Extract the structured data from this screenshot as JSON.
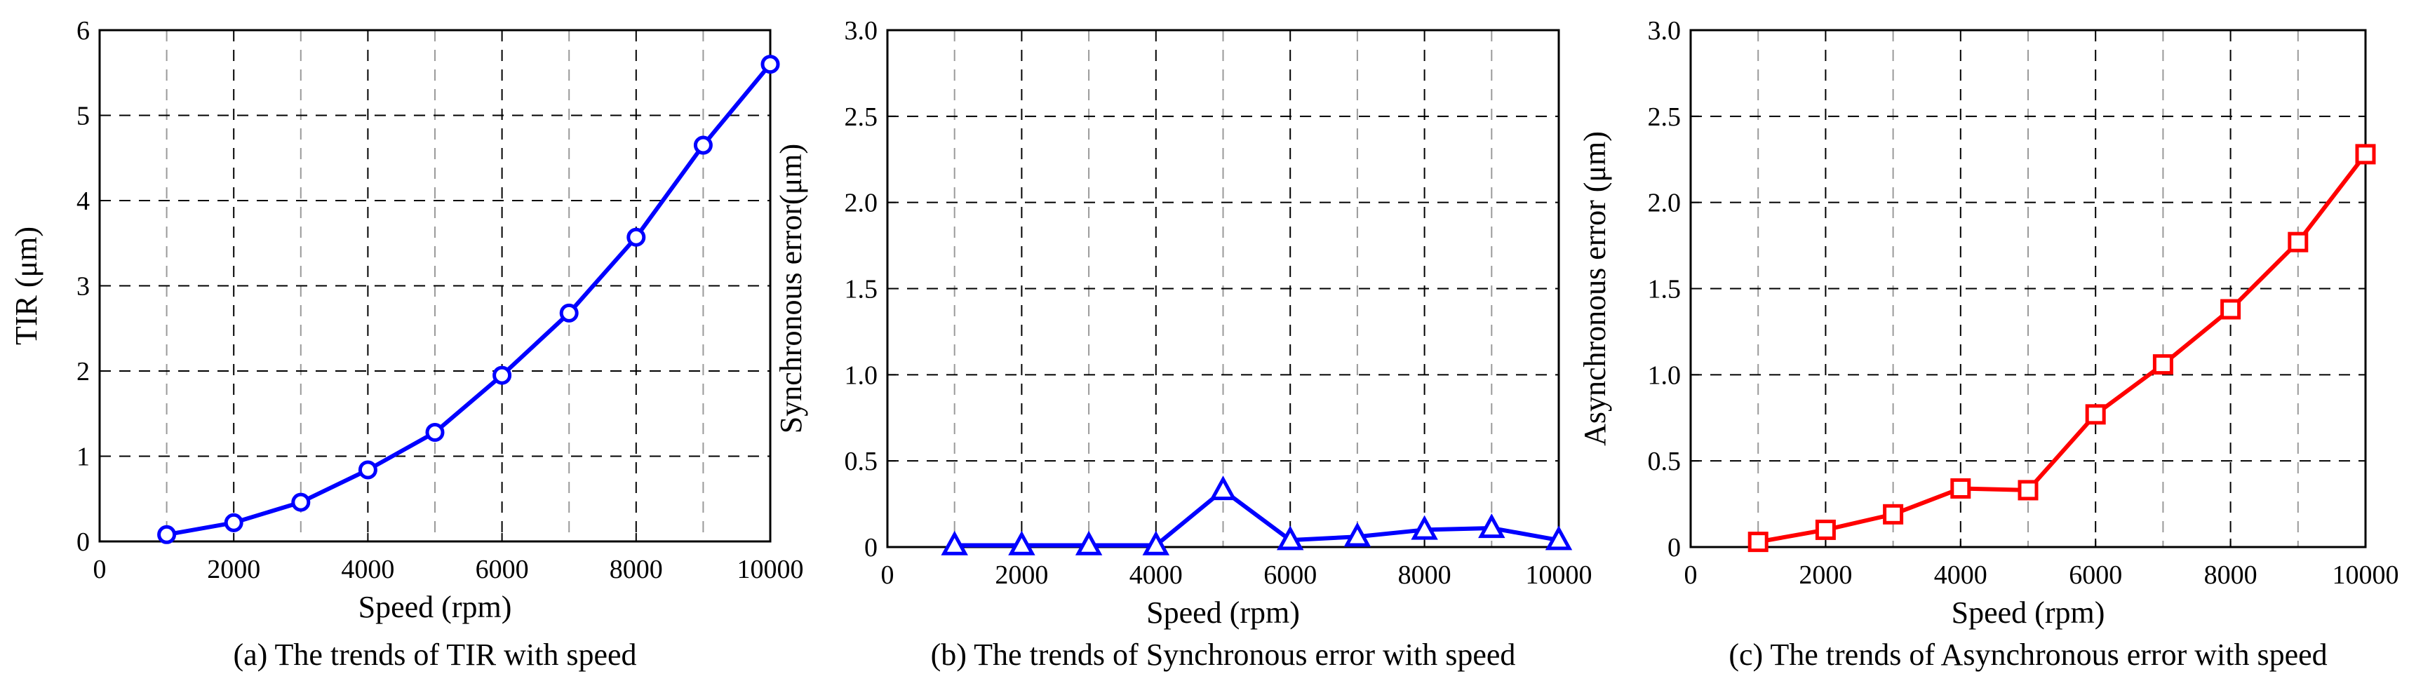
{
  "chart_data": [
    {
      "type": "line",
      "title": "",
      "caption": "(a) The  trends of TIR with speed",
      "xlabel": "Speed (rpm)",
      "ylabel": "TIR (μm)",
      "xlim": [
        0,
        10000
      ],
      "ylim": [
        0,
        6
      ],
      "xticks": [
        0,
        2000,
        4000,
        6000,
        8000,
        10000
      ],
      "xtick_labels": [
        "0",
        "2000",
        "4000",
        "6000",
        "8000",
        "10000"
      ],
      "yticks": [
        0,
        1,
        2,
        3,
        4,
        5,
        6
      ],
      "ytick_labels": [
        "0",
        "1",
        "2",
        "3",
        "4",
        "5",
        "6"
      ],
      "grid": true,
      "series": [
        {
          "name": "TIR",
          "color": "#0000ff",
          "marker": "circle",
          "x": [
            1000,
            2000,
            3000,
            4000,
            5000,
            6000,
            7000,
            8000,
            9000,
            10000
          ],
          "values": [
            0.08,
            0.22,
            0.46,
            0.84,
            1.28,
            1.95,
            2.68,
            3.57,
            4.65,
            5.6
          ]
        }
      ]
    },
    {
      "type": "line",
      "title": "",
      "caption": "(b) The  trends of Synchronous error with speed",
      "xlabel": "Speed  (rpm)",
      "ylabel": "Synchronous error(μm)",
      "xlim": [
        0,
        10000
      ],
      "ylim": [
        0,
        3.0
      ],
      "xticks": [
        0,
        2000,
        4000,
        6000,
        8000,
        10000
      ],
      "xtick_labels": [
        "0",
        "2000",
        "4000",
        "6000",
        "8000",
        "10000"
      ],
      "yticks": [
        0,
        0.5,
        1.0,
        1.5,
        2.0,
        2.5,
        3.0
      ],
      "ytick_labels": [
        "0",
        "0.5",
        "1.0",
        "1.5",
        "2.0",
        "2.5",
        "3.0"
      ],
      "grid": true,
      "series": [
        {
          "name": "Synchronous error",
          "color": "#0000ff",
          "marker": "triangle",
          "x": [
            1000,
            2000,
            3000,
            4000,
            5000,
            6000,
            7000,
            8000,
            9000,
            10000
          ],
          "values": [
            0.01,
            0.01,
            0.01,
            0.01,
            0.33,
            0.04,
            0.06,
            0.1,
            0.11,
            0.04
          ]
        }
      ]
    },
    {
      "type": "line",
      "title": "",
      "caption": "(c) The  trends of Asynchronous error with speed",
      "xlabel": "Speed (rpm)",
      "ylabel": "Asynchronous error (μm)",
      "xlim": [
        0,
        10000
      ],
      "ylim": [
        0,
        3.0
      ],
      "xticks": [
        0,
        2000,
        4000,
        6000,
        8000,
        10000
      ],
      "xtick_labels": [
        "0",
        "2000",
        "4000",
        "6000",
        "8000",
        "10000"
      ],
      "yticks": [
        0,
        0.5,
        1.0,
        1.5,
        2.0,
        2.5,
        3.0
      ],
      "ytick_labels": [
        "0",
        "0.5",
        "1.0",
        "1.5",
        "2.0",
        "2.5",
        "3.0"
      ],
      "grid": true,
      "series": [
        {
          "name": "Asynchronous error",
          "color": "#ff0000",
          "marker": "square",
          "x": [
            1000,
            2000,
            3000,
            4000,
            5000,
            6000,
            7000,
            8000,
            9000,
            10000
          ],
          "values": [
            0.03,
            0.1,
            0.19,
            0.34,
            0.33,
            0.77,
            1.06,
            1.38,
            1.77,
            2.28
          ]
        }
      ]
    }
  ]
}
